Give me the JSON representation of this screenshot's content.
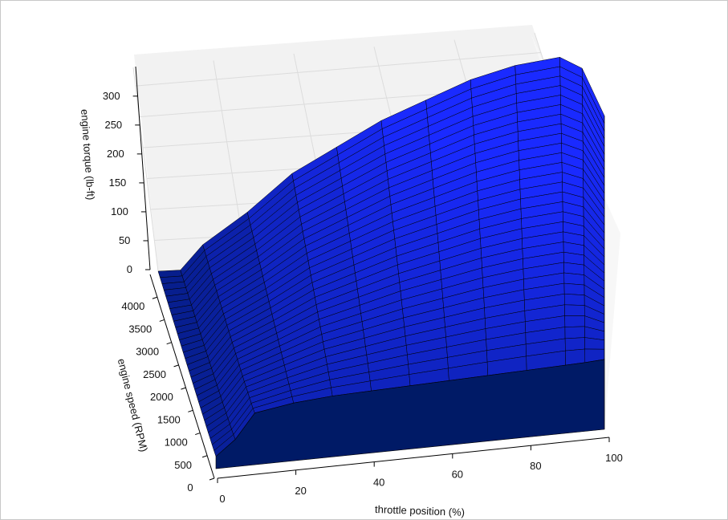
{
  "chart_data": {
    "type": "surface",
    "xlabel": "throttle position (%)",
    "ylabel": "engine speed (RPM)",
    "zlabel": "engine torque (lb-ft)",
    "xlim": [
      0,
      100
    ],
    "ylim": [
      0,
      4500
    ],
    "zlim": [
      0,
      330
    ],
    "x_ticks": [
      "0",
      "20",
      "40",
      "60",
      "80",
      "100"
    ],
    "y_ticks": [
      "0",
      "500",
      "1000",
      "1500",
      "2000",
      "2500",
      "3000",
      "3500",
      "4000"
    ],
    "z_ticks": [
      "0",
      "50",
      "100",
      "150",
      "200",
      "250",
      "300"
    ],
    "grid": true,
    "x": [
      0,
      5,
      10,
      20,
      30,
      40,
      50,
      60,
      70,
      80,
      90,
      95,
      100
    ],
    "torque_at_max_speed": [
      0,
      0,
      40,
      90,
      150,
      190,
      230,
      260,
      290,
      310,
      320,
      300,
      220
    ],
    "torque_at_min_speed": [
      20,
      45,
      85,
      95,
      100,
      102,
      104,
      106,
      108,
      110,
      112,
      113,
      115
    ],
    "color_low": "#001a66",
    "color_high": "#1a2aff",
    "edge_color": "#000000",
    "pane_color": "#f2f2f2"
  }
}
